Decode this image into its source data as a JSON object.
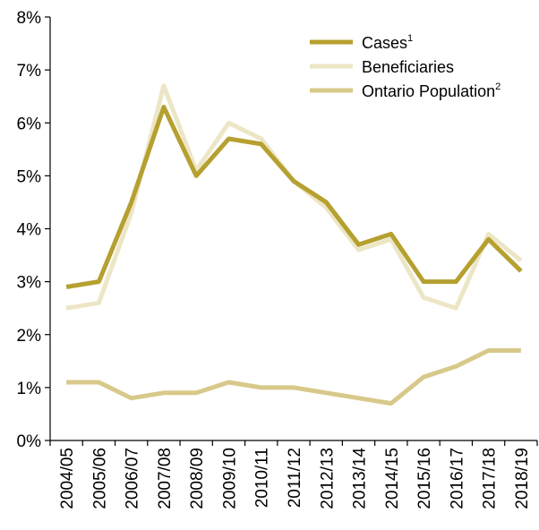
{
  "chart_data": {
    "type": "line",
    "categories": [
      "2004/05",
      "2005/06",
      "2006/07",
      "2007/08",
      "2008/09",
      "2009/10",
      "2010/11",
      "2011/12",
      "2012/13",
      "2013/14",
      "2014/15",
      "2015/16",
      "2016/17",
      "2017/18",
      "2018/19"
    ],
    "ylim": [
      0,
      8
    ],
    "y_ticks": [
      "0%",
      "1%",
      "2%",
      "3%",
      "4%",
      "5%",
      "6%",
      "7%",
      "8%"
    ],
    "grid": false,
    "legend_position": "top-right",
    "series": [
      {
        "name": "Cases",
        "footnote": "1",
        "color": "#b5a030",
        "values": [
          2.9,
          3.0,
          4.5,
          6.3,
          5.0,
          5.7,
          5.6,
          4.9,
          4.5,
          3.7,
          3.9,
          3.0,
          3.0,
          3.8,
          3.2
        ]
      },
      {
        "name": "Beneficiaries",
        "footnote": "",
        "color": "#ede6c6",
        "values": [
          2.5,
          2.6,
          4.3,
          6.7,
          5.1,
          6.0,
          5.7,
          4.9,
          4.4,
          3.6,
          3.8,
          2.7,
          2.5,
          3.9,
          3.4
        ]
      },
      {
        "name": "Ontario Population",
        "footnote": "2",
        "color": "#d8c98a",
        "values": [
          1.1,
          1.1,
          0.8,
          0.9,
          0.9,
          1.1,
          1.0,
          1.0,
          0.9,
          0.8,
          0.7,
          1.2,
          1.4,
          1.7,
          1.7
        ]
      }
    ]
  }
}
